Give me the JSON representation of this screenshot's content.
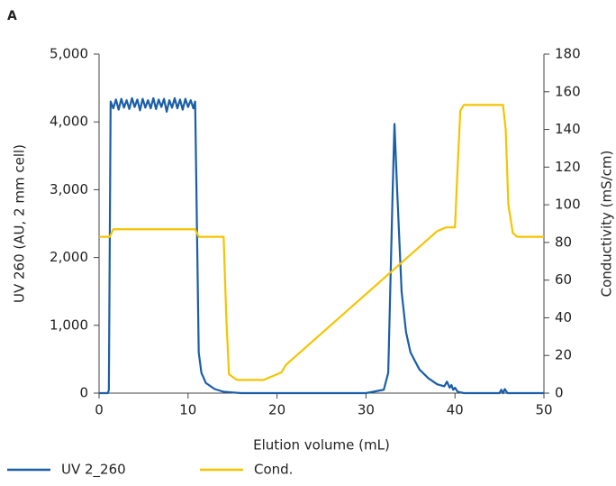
{
  "chart_data": {
    "type": "line",
    "panel_label": "A",
    "x_label": "Elution volume (mL)",
    "y_label": "UV 260 (AU, 2 mm cell)",
    "y2_label": "Conductivity (mS/cm)",
    "xlim": [
      0,
      50
    ],
    "xticks": [
      0,
      10,
      20,
      30,
      40,
      50
    ],
    "ylim": [
      0,
      5000
    ],
    "yticks": [
      0,
      {
        "value": 1000,
        "label": "1,000"
      },
      {
        "value": 2000,
        "label": "2,000"
      },
      {
        "value": 3000,
        "label": "3,000"
      },
      {
        "value": 4000,
        "label": "4,000"
      },
      {
        "value": 5000,
        "label": "5,000"
      }
    ],
    "y2lim": [
      0,
      180
    ],
    "y2ticks": [
      0,
      20,
      40,
      60,
      80,
      100,
      120,
      140,
      160,
      180
    ],
    "grid": false,
    "legend": "bottom",
    "series": [
      {
        "name": "UV 2_260",
        "color": "#1a5ea8",
        "x": [
          0,
          1,
          1.1,
          1.3,
          1.6,
          1.9,
          2.2,
          2.5,
          2.8,
          3.1,
          3.4,
          3.7,
          4.0,
          4.3,
          4.6,
          4.9,
          5.2,
          5.5,
          5.8,
          6.1,
          6.4,
          6.7,
          7.0,
          7.3,
          7.6,
          7.9,
          8.2,
          8.5,
          8.8,
          9.1,
          9.4,
          9.7,
          10.0,
          10.3,
          10.6,
          10.8,
          11.2,
          11.5,
          12,
          13,
          14,
          16,
          30,
          32,
          32.5,
          33.0,
          33.2,
          33.5,
          34,
          34.5,
          35,
          36,
          37,
          38,
          38.8,
          39.1,
          39.4,
          39.6,
          39.8,
          40.0,
          40.3,
          41,
          45,
          45.2,
          45.4,
          45.6,
          45.9,
          50
        ],
        "values": [
          0,
          0,
          50,
          4300,
          4200,
          4330,
          4180,
          4340,
          4210,
          4320,
          4190,
          4350,
          4220,
          4330,
          4170,
          4340,
          4210,
          4320,
          4200,
          4350,
          4190,
          4330,
          4220,
          4340,
          4150,
          4320,
          4210,
          4350,
          4200,
          4330,
          4180,
          4340,
          4220,
          4320,
          4200,
          4300,
          600,
          300,
          150,
          60,
          20,
          0,
          0,
          50,
          300,
          3000,
          3970,
          3000,
          1500,
          900,
          600,
          350,
          220,
          130,
          100,
          170,
          80,
          120,
          50,
          80,
          20,
          0,
          0,
          50,
          0,
          60,
          0,
          0
        ]
      },
      {
        "name": "Cond.",
        "color": "#f5c400",
        "axis": "y2",
        "x": [
          0,
          1.2,
          1.6,
          10.8,
          11.2,
          14,
          14.3,
          14.6,
          15.5,
          18.5,
          20.5,
          21,
          38,
          39,
          40,
          40.3,
          40.6,
          41,
          45.4,
          45.7,
          46,
          46.5,
          47,
          50
        ],
        "values": [
          83,
          83,
          87,
          87,
          83,
          83,
          40,
          10,
          7,
          7,
          11,
          15,
          86,
          88,
          88,
          120,
          150,
          153,
          153,
          140,
          100,
          85,
          83,
          83
        ]
      }
    ]
  }
}
